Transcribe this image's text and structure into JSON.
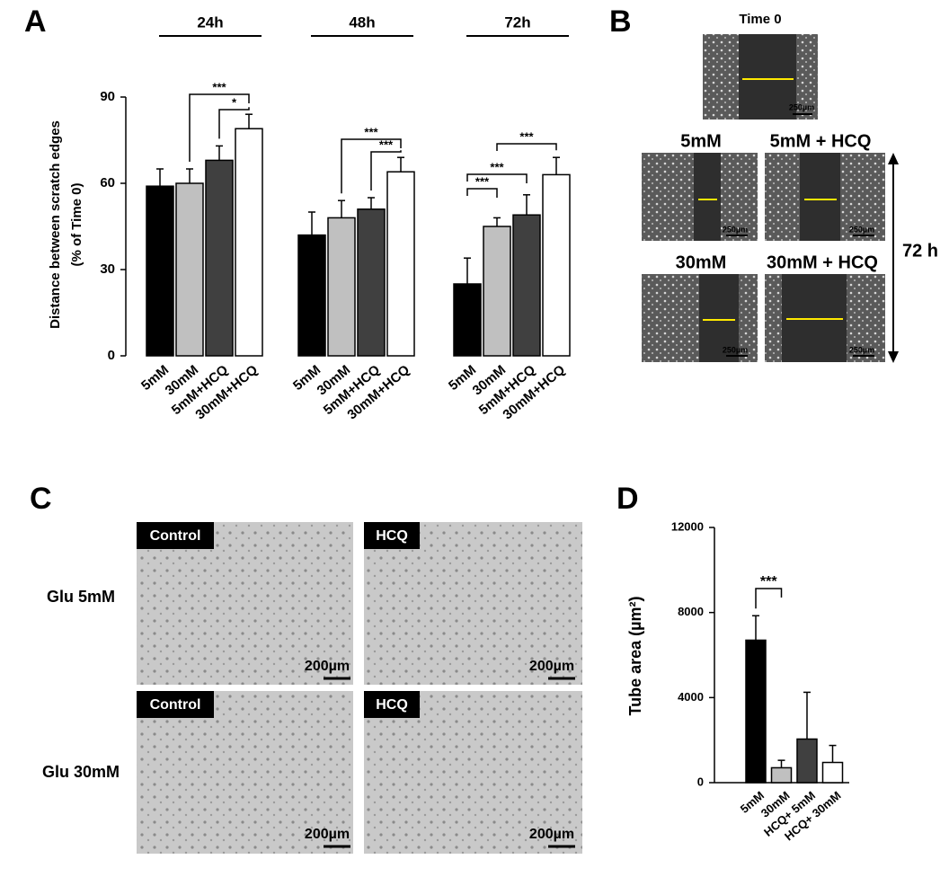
{
  "panel_labels": [
    "A",
    "B",
    "C",
    "D"
  ],
  "chart_data": [
    {
      "type": "bar",
      "y_label": [
        "Distance between scratch edges",
        "(% of Time 0)"
      ],
      "colors": [
        "#000000",
        "#c0c0c0",
        "#404040",
        "#ffffff"
      ],
      "groups": [
        {
          "name": "24h",
          "categories": [
            "5mM",
            "30mM",
            "5mM+HCQ",
            "30mM+HCQ"
          ],
          "values": [
            59,
            60,
            68,
            79
          ],
          "errors": [
            6,
            5,
            5,
            5
          ]
        },
        {
          "name": "48h",
          "categories": [
            "5mM",
            "30mM",
            "5mM+HCQ",
            "30mM+HCQ"
          ],
          "values": [
            42,
            48,
            51,
            64
          ],
          "errors": [
            8,
            6,
            4,
            5
          ]
        },
        {
          "name": "72h",
          "categories": [
            "5mM",
            "30mM",
            "5mM+HCQ",
            "30mM+HCQ"
          ],
          "values": [
            25,
            45,
            49,
            63
          ],
          "errors": [
            9,
            3,
            7,
            6
          ]
        }
      ],
      "ylim": [
        0,
        90
      ],
      "yticks": [
        0,
        30,
        60,
        90
      ],
      "annotations": [
        "***",
        "*",
        "***",
        "***",
        "***",
        "***",
        "***"
      ]
    },
    {
      "type": "bar",
      "y_label": "Tube area (µm²)",
      "colors": [
        "#000000",
        "#c0c0c0",
        "#404040",
        "#ffffff"
      ],
      "categories": [
        "5mM",
        "30mM",
        "HCQ+ 5mM",
        "HCQ+ 30mM"
      ],
      "values": [
        6700,
        700,
        2050,
        950
      ],
      "errors": [
        1150,
        350,
        2200,
        800
      ],
      "ylim": [
        0,
        12000
      ],
      "yticks": [
        0,
        4000,
        8000,
        12000
      ],
      "annotations": [
        "***"
      ]
    }
  ],
  "panel_b": {
    "time0": "Time 0",
    "conditions": [
      "5mM",
      "5mM + HCQ",
      "30mM",
      "30mM + HCQ"
    ],
    "duration": "72 h",
    "scale_bar": "250µm"
  },
  "panel_c": {
    "rows": [
      "Glu 5mM",
      "Glu 30mM"
    ],
    "columns": [
      "Control",
      "HCQ"
    ],
    "scale_bar": "200µm"
  }
}
